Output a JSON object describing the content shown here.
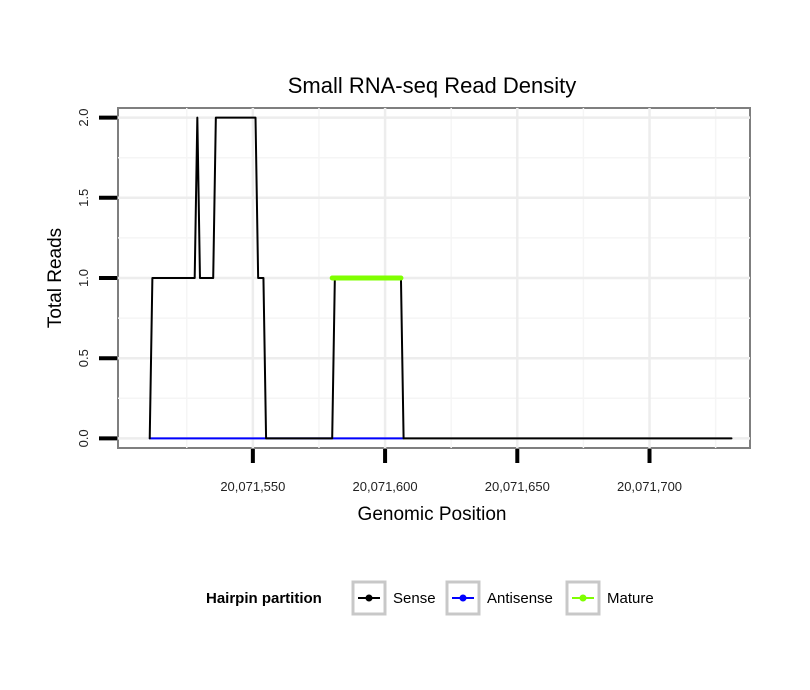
{
  "chart_data": {
    "type": "line",
    "title": "Small RNA-seq Read Density",
    "xlabel": "Genomic Position",
    "ylabel": "Total Reads",
    "xlim": [
      20071499,
      20071738
    ],
    "ylim": [
      -0.06,
      2.06
    ],
    "x_ticks": [
      20071550,
      20071600,
      20071650,
      20071700
    ],
    "x_tick_labels": [
      "20,071,550",
      "20,071,600",
      "20,071,650",
      "20,071,700"
    ],
    "y_ticks": [
      0,
      0.5,
      1,
      1.5,
      2
    ],
    "y_tick_labels": [
      "0.0",
      "0.5",
      "1.0",
      "1.5",
      "2.0"
    ],
    "grid": true,
    "legend": {
      "title": "Hairpin partition",
      "position": "bottom",
      "entries": [
        "Sense",
        "Antisense",
        "Mature"
      ]
    },
    "series": [
      {
        "name": "Sense",
        "color": "#000000",
        "x": [
          20071511,
          20071512,
          20071528,
          20071529,
          20071530,
          20071531,
          20071535,
          20071536,
          20071551,
          20071552,
          20071554,
          20071555,
          20071580,
          20071581,
          20071606,
          20071607,
          20071731
        ],
        "y": [
          0,
          1,
          1,
          2,
          1,
          1,
          1,
          2,
          2,
          1,
          1,
          0,
          0,
          1,
          1,
          0,
          0
        ]
      },
      {
        "name": "Antisense",
        "color": "#0000ff",
        "x": [
          20071511,
          20071607
        ],
        "y": [
          0,
          0
        ]
      },
      {
        "name": "Mature",
        "color": "#7fff00",
        "x": [
          20071580,
          20071606
        ],
        "y": [
          1,
          1
        ]
      }
    ]
  }
}
